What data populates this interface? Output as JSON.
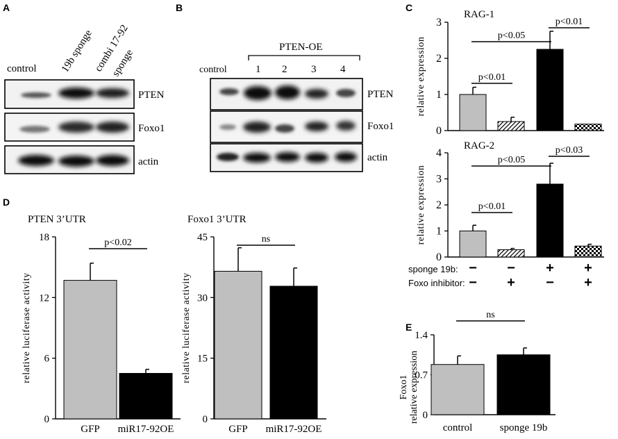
{
  "figure": {
    "panel_letters": [
      "A",
      "B",
      "C",
      "D",
      "E"
    ]
  },
  "panel_a": {
    "lanes": [
      "control",
      "19b sponge",
      "combi 17-92 sponge"
    ],
    "lane_header_lines": {
      "control": "control",
      "sponge19b": "19b sponge",
      "combi_line1": "combi 17-92",
      "combi_line2": "sponge"
    },
    "blots": [
      "PTEN",
      "Foxo1",
      "actin"
    ]
  },
  "panel_b": {
    "control_label": "control",
    "group_label": "PTEN-OE",
    "lane_numbers": [
      "1",
      "2",
      "3",
      "4"
    ],
    "blots": [
      "PTEN",
      "Foxo1",
      "actin"
    ]
  },
  "colors": {
    "gray_bar": "#bfbfbf",
    "black_bar": "#000000",
    "axis": "#000000"
  },
  "chart_data": [
    {
      "id": "C-RAG1",
      "type": "bar",
      "title": "RAG-1",
      "ylabel": "relative expression",
      "ylim": [
        0,
        3
      ],
      "yticks": [
        "0",
        "1",
        "2",
        "3"
      ],
      "values": [
        1.0,
        0.25,
        2.25,
        0.18
      ],
      "errors": [
        0.2,
        0.12,
        0.5,
        0
      ],
      "fills": [
        "gray",
        "diagonal-hatch",
        "black",
        "checker"
      ],
      "annotations": [
        "p<0.01",
        "p<0.05",
        "p<0.01"
      ]
    },
    {
      "id": "C-RAG2",
      "type": "bar",
      "title": "RAG-2",
      "ylabel": "relative expression",
      "ylim": [
        0,
        4
      ],
      "yticks": [
        "0",
        "1",
        "2",
        "3",
        "4"
      ],
      "values": [
        1.0,
        0.28,
        2.8,
        0.42
      ],
      "errors": [
        0.22,
        0.05,
        0.8,
        0.07
      ],
      "fills": [
        "gray",
        "diagonal-hatch",
        "black",
        "checker"
      ],
      "annotations": [
        "p<0.01",
        "p<0.05",
        "p<0.03"
      ],
      "conditions": [
        {
          "label": "sponge 19b:",
          "signs": [
            "−",
            "−",
            "+",
            "+"
          ]
        },
        {
          "label": "Foxo inhibitor:",
          "signs": [
            "−",
            "+",
            "−",
            "+"
          ]
        }
      ]
    },
    {
      "id": "D-PTEN",
      "type": "bar",
      "title": "PTEN 3’UTR",
      "ylabel": "relative luciferase activity",
      "ylim": [
        0,
        18
      ],
      "yticks": [
        "0",
        "6",
        "12",
        "18"
      ],
      "categories": [
        "GFP",
        "miR17-92OE"
      ],
      "values": [
        13.7,
        4.5
      ],
      "errors": [
        1.7,
        0.4
      ],
      "fills": [
        "gray",
        "black"
      ],
      "annotations": [
        "p<0.02"
      ]
    },
    {
      "id": "D-Foxo1",
      "type": "bar",
      "title": "Foxo1 3’UTR",
      "ylabel": "relative luciferase activity",
      "ylim": [
        0,
        45
      ],
      "yticks": [
        "0",
        "15",
        "30",
        "45"
      ],
      "categories": [
        "GFP",
        "miR17-92OE"
      ],
      "values": [
        36.5,
        32.8
      ],
      "errors": [
        5.8,
        4.5
      ],
      "fills": [
        "gray",
        "black"
      ],
      "annotations": [
        "ns"
      ]
    },
    {
      "id": "E",
      "type": "bar",
      "title": "",
      "ylabel": "Foxo1 relative expression",
      "ylim": [
        0,
        1.4
      ],
      "yticks": [
        "0",
        "0.7",
        "1.4"
      ],
      "categories": [
        "control",
        "sponge 19b"
      ],
      "values": [
        0.88,
        1.05
      ],
      "errors": [
        0.15,
        0.12
      ],
      "fills": [
        "gray",
        "black"
      ],
      "annotations": [
        "ns"
      ]
    }
  ]
}
